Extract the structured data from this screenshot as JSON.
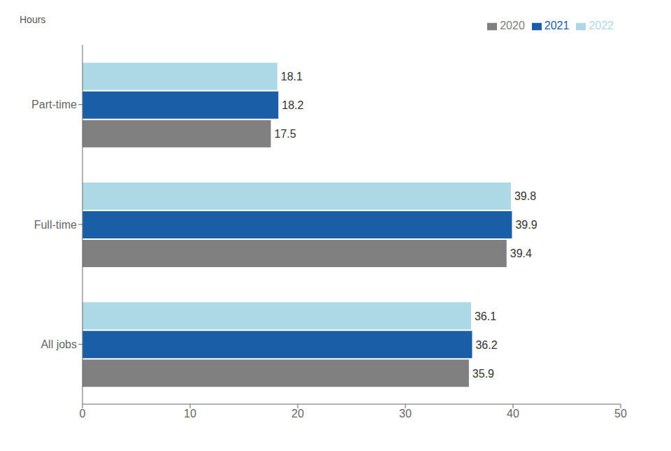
{
  "chart_data": {
    "type": "bar",
    "orientation": "horizontal",
    "xlabel": "Hours",
    "categories": [
      "Part-time",
      "Full-time",
      "All jobs"
    ],
    "series": [
      {
        "name": "2022",
        "color": "#ADD8E6",
        "values": [
          18.1,
          39.8,
          36.1
        ]
      },
      {
        "name": "2021",
        "color": "#1A5EA8",
        "values": [
          18.2,
          39.9,
          36.2
        ]
      },
      {
        "name": "2020",
        "color": "#808080",
        "values": [
          17.5,
          39.4,
          35.9
        ]
      }
    ],
    "xlim": [
      0,
      50
    ],
    "xticks": [
      0,
      10,
      20,
      30,
      40,
      50
    ],
    "grid": false,
    "legend": "upper right",
    "data_labels": true
  }
}
